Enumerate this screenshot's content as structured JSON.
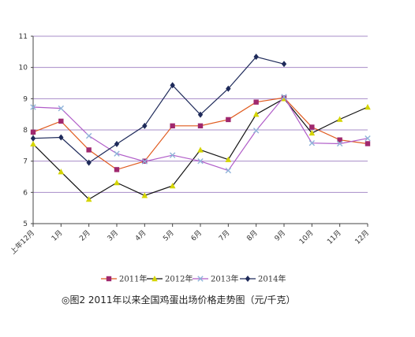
{
  "chart_data": {
    "type": "line",
    "categories": [
      "上年12月",
      "1月",
      "2月",
      "3月",
      "4月",
      "5月",
      "6月",
      "7月",
      "8月",
      "9月",
      "10月",
      "11月",
      "12月"
    ],
    "series": [
      {
        "name": "2011年",
        "color": "#a0286e",
        "marker": "square",
        "values": [
          7.93,
          8.28,
          7.36,
          6.73,
          7.0,
          8.13,
          8.13,
          8.33,
          8.89,
          9.03,
          8.09,
          7.68,
          7.56
        ]
      },
      {
        "name": "2012年",
        "color": "#d4d400",
        "marker": "triangle",
        "values": [
          7.55,
          6.66,
          5.78,
          6.31,
          5.9,
          6.21,
          7.36,
          7.05,
          8.5,
          9.0,
          7.9,
          8.34,
          8.73
        ]
      },
      {
        "name": "2013年",
        "color": "#8fb3d9",
        "marker": "x",
        "values": [
          8.73,
          8.69,
          7.81,
          7.24,
          6.99,
          7.19,
          7.0,
          6.7,
          7.98,
          9.06,
          7.58,
          7.56,
          7.73
        ]
      },
      {
        "name": "2014年",
        "color": "#1e2a5a",
        "marker": "diamond",
        "values": [
          7.73,
          7.76,
          6.95,
          7.55,
          8.13,
          9.43,
          8.49,
          9.32,
          10.34,
          10.11,
          null,
          null,
          null
        ]
      }
    ],
    "line_colors": {
      "2011年": "#e05a1e",
      "2012年": "#111111",
      "2013年": "#b05cc8",
      "2014年": "#1e2a5a"
    },
    "ylim": [
      5,
      11
    ],
    "yticks": [
      5,
      6,
      7,
      8,
      9,
      10,
      11
    ],
    "grid": true,
    "gridline_color": "#a78cc8",
    "legend_position": "bottom",
    "caption": "◎图2  2011年以来全国鸡蛋出场价格走势图（元/千克）"
  }
}
